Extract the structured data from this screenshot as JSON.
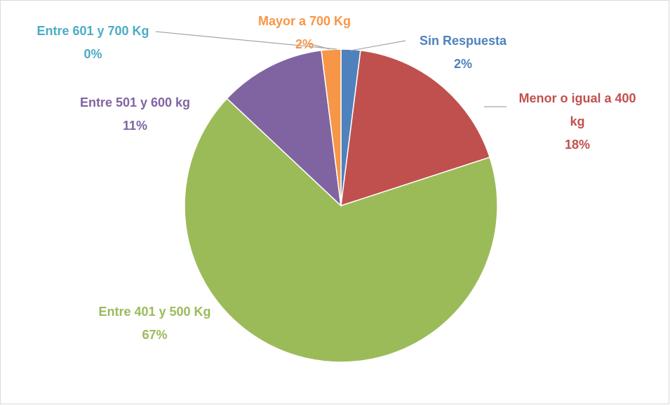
{
  "chart_data": {
    "type": "pie",
    "categories": [
      "Sin Respuesta",
      "Menor o igual a 400 kg",
      "Entre 401 y 500 Kg",
      "Entre 501 y 600 kg",
      "Entre 601 y 700 Kg",
      "Mayor a 700 Kg"
    ],
    "values": [
      2,
      18,
      67,
      11,
      0,
      2
    ],
    "value_labels": [
      "2%",
      "18%",
      "67%",
      "11%",
      "0%",
      "2%"
    ],
    "colors": [
      "#4f81bd",
      "#c0504d",
      "#9bbb59",
      "#8064a2",
      "#4bacc6",
      "#f79646"
    ]
  }
}
